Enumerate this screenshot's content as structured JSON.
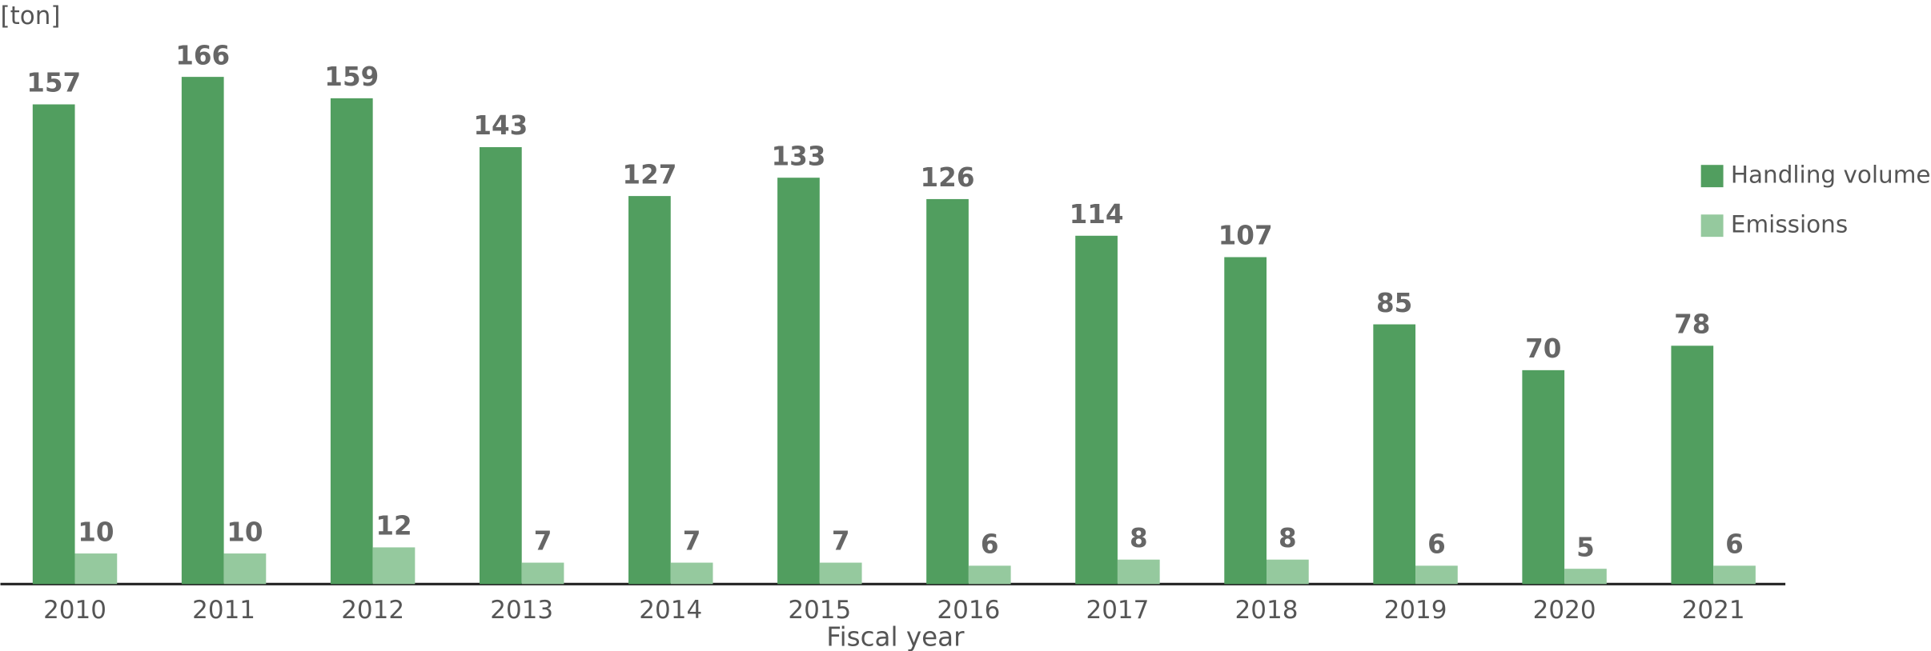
{
  "chart_data": {
    "type": "bar",
    "unit_label": "[ton]",
    "x_label": "Fiscal year",
    "categories": [
      "2010",
      "2011",
      "2012",
      "2013",
      "2014",
      "2015",
      "2016",
      "2017",
      "2018",
      "2019",
      "2020",
      "2021"
    ],
    "series": [
      {
        "name": "Handling volume",
        "color": "#519e5f",
        "values": [
          157,
          166,
          159,
          143,
          127,
          133,
          126,
          114,
          107,
          85,
          70,
          78
        ]
      },
      {
        "name": "Emissions",
        "color": "#95c99e",
        "values": [
          10,
          10,
          12,
          7,
          7,
          7,
          6,
          8,
          8,
          6,
          5,
          6
        ]
      }
    ]
  }
}
